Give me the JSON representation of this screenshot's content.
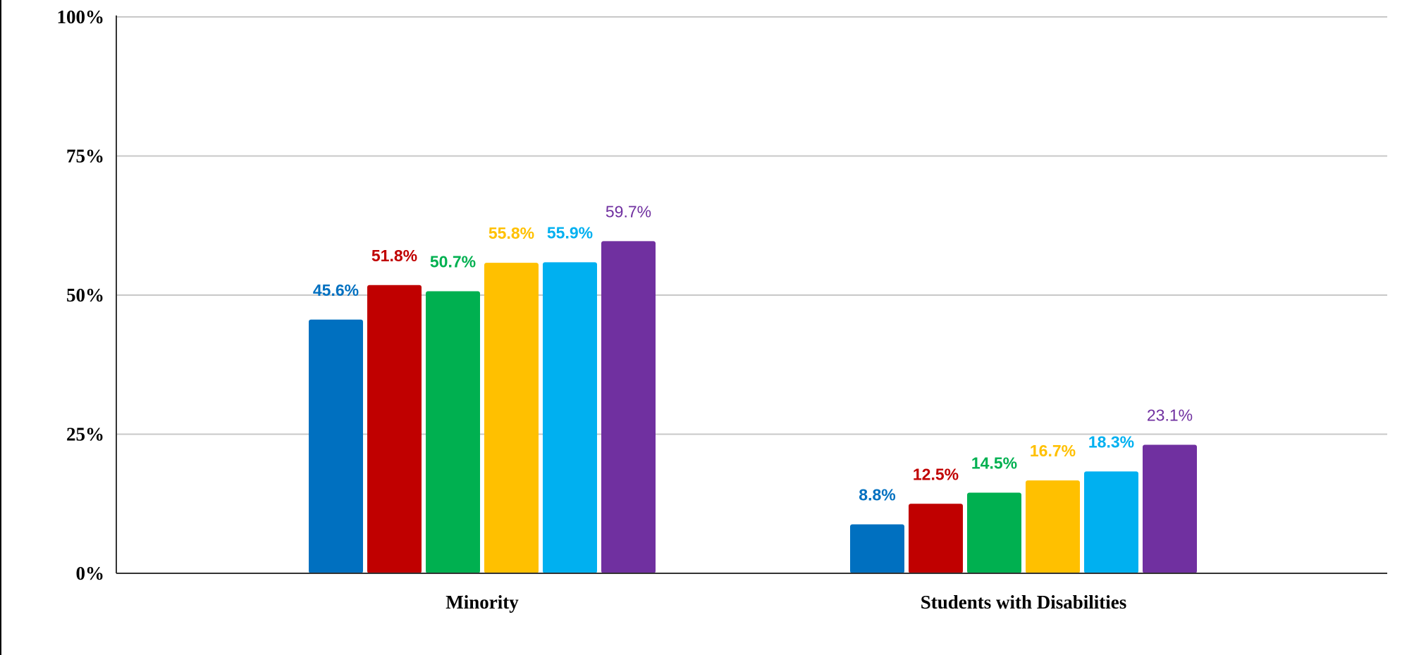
{
  "chart_data": {
    "type": "bar",
    "categories": [
      "Minority",
      "Students with Disabilities"
    ],
    "series": [
      {
        "values": [
          45.6,
          8.8
        ],
        "color": "#0070c0",
        "labels": [
          "45.6%",
          "8.8%"
        ]
      },
      {
        "values": [
          51.8,
          12.5
        ],
        "color": "#c00000",
        "labels": [
          "51.8%",
          "12.5%"
        ]
      },
      {
        "values": [
          50.7,
          14.5
        ],
        "color": "#00b050",
        "labels": [
          "50.7%",
          "14.5%"
        ]
      },
      {
        "values": [
          55.8,
          16.7
        ],
        "color": "#ffc000",
        "labels": [
          "55.8%",
          "16.7%"
        ]
      },
      {
        "values": [
          55.9,
          18.3
        ],
        "color": "#00b0f0",
        "labels": [
          "55.9%",
          "18.3%"
        ]
      },
      {
        "values": [
          59.7,
          23.1
        ],
        "color": "#7030a0",
        "labels": [
          "59.7%",
          "23.1%"
        ]
      }
    ],
    "y_ticks": [
      "0%",
      "25%",
      "50%",
      "75%",
      "100%"
    ],
    "ylim": [
      0,
      100
    ],
    "grid": true,
    "legend": "none",
    "title": "",
    "xlabel": "",
    "ylabel": ""
  }
}
